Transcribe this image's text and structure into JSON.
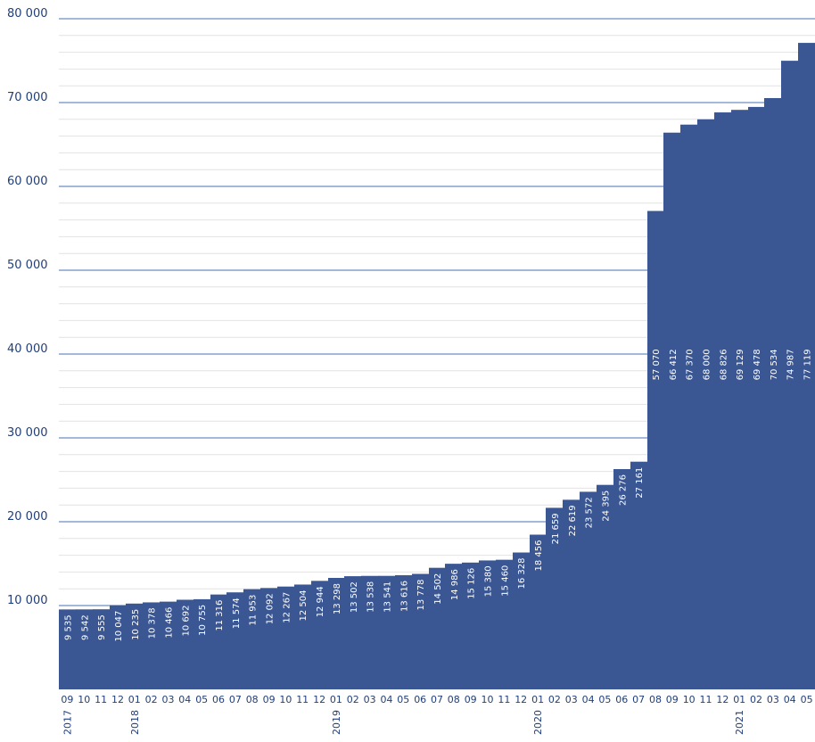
{
  "chart_data": {
    "type": "bar",
    "categories": [
      "09",
      "10",
      "11",
      "12",
      "01",
      "02",
      "03",
      "04",
      "05",
      "06",
      "07",
      "08",
      "09",
      "10",
      "11",
      "12",
      "01",
      "02",
      "03",
      "04",
      "05",
      "06",
      "07",
      "08",
      "09",
      "10",
      "11",
      "12",
      "01",
      "02",
      "03",
      "04",
      "05",
      "06",
      "07",
      "08",
      "09",
      "10",
      "11",
      "12",
      "01",
      "02",
      "03",
      "04",
      "05"
    ],
    "years": [
      {
        "label": "2017",
        "month_index": 0
      },
      {
        "label": "2018",
        "month_index": 4
      },
      {
        "label": "2019",
        "month_index": 16
      },
      {
        "label": "2020",
        "month_index": 28
      },
      {
        "label": "2021",
        "month_index": 40
      }
    ],
    "values": [
      9535,
      9542,
      9555,
      10047,
      10235,
      10378,
      10466,
      10692,
      10755,
      11316,
      11574,
      11953,
      12092,
      12267,
      12504,
      12944,
      13298,
      13502,
      13538,
      13541,
      13616,
      13778,
      14502,
      14986,
      15126,
      15380,
      15460,
      16328,
      18456,
      21659,
      22619,
      23572,
      24395,
      26276,
      27161,
      57070,
      66412,
      67370,
      68000,
      68826,
      69129,
      69478,
      70534,
      74987,
      77119
    ],
    "data_labels": [
      "9 535",
      "9 542",
      "9 555",
      "10 047",
      "10 235",
      "10 378",
      "10 466",
      "10 692",
      "10 755",
      "11 316",
      "11 574",
      "11 953",
      "12 092",
      "12 267",
      "12 504",
      "12 944",
      "13 298",
      "13 502",
      "13 538",
      "13 541",
      "13 616",
      "13 778",
      "14 502",
      "14 986",
      "15 126",
      "15 380",
      "15 460",
      "16 328",
      "18 456",
      "21 659",
      "22 619",
      "23 572",
      "24 395",
      "26 276",
      "27 161",
      "57 070",
      "66 412",
      "67 370",
      "68 000",
      "68 826",
      "69 129",
      "69 478",
      "70 534",
      "74 987",
      "77 119"
    ],
    "y_ticks": [
      {
        "value": 10000,
        "label": "10 000"
      },
      {
        "value": 20000,
        "label": "20 000"
      },
      {
        "value": 30000,
        "label": "30 000"
      },
      {
        "value": 40000,
        "label": "40 000"
      },
      {
        "value": 50000,
        "label": "50 000"
      },
      {
        "value": 60000,
        "label": "60 000"
      },
      {
        "value": 70000,
        "label": "70 000"
      },
      {
        "value": 80000,
        "label": "80 000"
      }
    ],
    "ylim": [
      0,
      80000
    ],
    "minor_grid_step": 2000,
    "grid": true,
    "title": "",
    "xlabel": "",
    "ylabel": "",
    "colors": {
      "bar": "#3a5794",
      "major_grid": "#4a72b5",
      "minor_grid": "#e2e2e2",
      "text": "#1f3f7a",
      "data_label": "#ffffff"
    }
  }
}
